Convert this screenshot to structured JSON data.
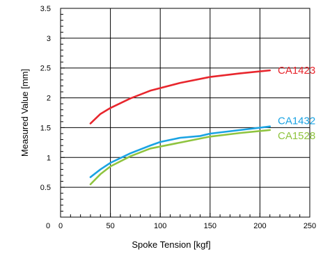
{
  "chart_data": {
    "type": "line",
    "title": "",
    "xlabel": "Spoke Tension [kgf]",
    "ylabel": "Measured Value [mm]",
    "xlim": [
      0,
      250
    ],
    "ylim": [
      0,
      3.5
    ],
    "x_ticks": [
      "0",
      "50",
      "100",
      "150",
      "200",
      "250"
    ],
    "y_ticks": [
      "0.5",
      "1",
      "1.5",
      "2",
      "2.5",
      "3",
      "3.5"
    ],
    "x_tick_values": [
      0,
      50,
      100,
      150,
      200,
      250
    ],
    "y_tick_values": [
      0.5,
      1,
      1.5,
      2,
      2.5,
      3,
      3.5
    ],
    "grid": true,
    "legend": "inline labels at right end of lines",
    "series": [
      {
        "name": "CA1423",
        "color": "#e8262d",
        "x": [
          30,
          40,
          50,
          70,
          90,
          120,
          150,
          180,
          210
        ],
        "y": [
          1.57,
          1.73,
          1.83,
          1.99,
          2.12,
          2.25,
          2.35,
          2.41,
          2.46
        ]
      },
      {
        "name": "CA1432",
        "color": "#1aa3e3",
        "x": [
          30,
          40,
          50,
          70,
          90,
          100,
          120,
          140,
          150,
          180,
          210
        ],
        "y": [
          0.67,
          0.8,
          0.91,
          1.07,
          1.2,
          1.26,
          1.33,
          1.36,
          1.4,
          1.46,
          1.52
        ]
      },
      {
        "name": "CA1528",
        "color": "#8fc43f",
        "x": [
          30,
          40,
          50,
          70,
          90,
          120,
          150,
          180,
          210
        ],
        "y": [
          0.55,
          0.72,
          0.85,
          1.02,
          1.15,
          1.25,
          1.35,
          1.41,
          1.46
        ]
      }
    ]
  }
}
